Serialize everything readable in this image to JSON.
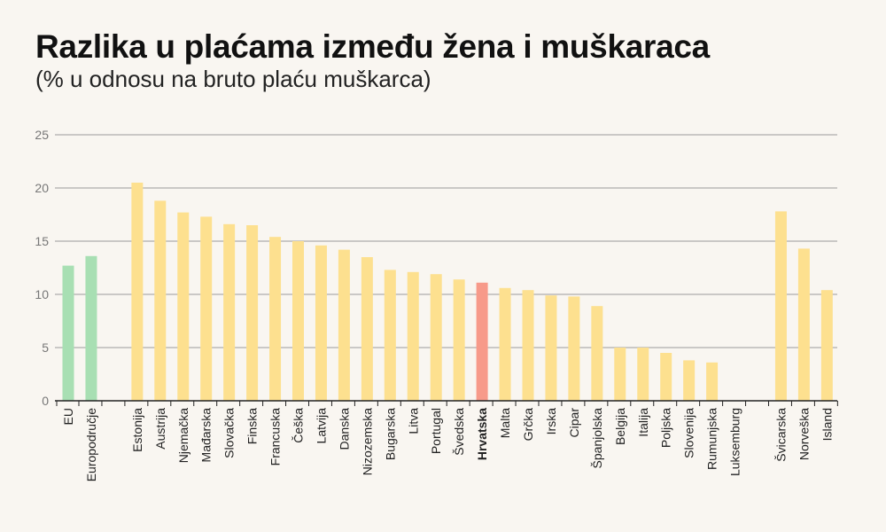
{
  "chart_data": {
    "type": "bar",
    "title": "Razlika u plaćama između žena i muškaraca",
    "subtitle": "(% u odnosu na bruto plaću muškarca)",
    "ylim": [
      0,
      25
    ],
    "yticks": [
      0,
      5,
      10,
      15,
      20,
      25
    ],
    "grid": true,
    "colors": {
      "aggregate": "#a8dfb3",
      "country": "#fde08f",
      "highlight": "#f79a8a",
      "grid": "#9a9a9a",
      "axis": "#222222"
    },
    "groups": [
      {
        "categories": [
          "EU",
          "Europodručje"
        ],
        "values": [
          12.7,
          13.6
        ],
        "color": "aggregate"
      },
      {
        "categories": [
          "Estonija",
          "Austrija",
          "Njemačka",
          "Mađarska",
          "Slovačka",
          "Finska",
          "Francuska",
          "Češka",
          "Latvija",
          "Danska",
          "Nizozemska",
          "Bugarska",
          "Litva",
          "Portugal",
          "Švedska",
          "Hrvatska",
          "Malta",
          "Grčka",
          "Irska",
          "Cipar",
          "Španjolska",
          "Belgija",
          "Italija",
          "Poljska",
          "Slovenija",
          "Rumunjska",
          "Luksemburg"
        ],
        "values": [
          20.5,
          18.8,
          17.7,
          17.3,
          16.6,
          16.5,
          15.4,
          15.0,
          14.6,
          14.2,
          13.5,
          12.3,
          12.1,
          11.9,
          11.4,
          11.1,
          10.6,
          10.4,
          9.9,
          9.8,
          8.9,
          5.0,
          5.0,
          4.5,
          3.8,
          3.6,
          0.0
        ],
        "color": "country",
        "highlight": "Hrvatska"
      },
      {
        "categories": [
          "Švicarska",
          "Norveška",
          "Island"
        ],
        "values": [
          17.8,
          14.3,
          10.4
        ],
        "color": "country"
      }
    ]
  }
}
